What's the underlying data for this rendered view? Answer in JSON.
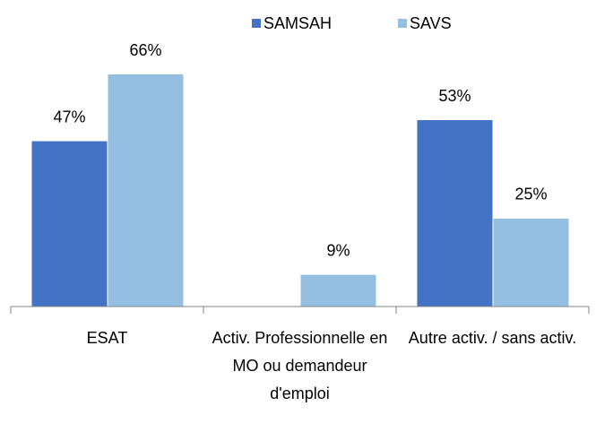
{
  "chart_data": {
    "type": "bar",
    "categories": [
      "ESAT",
      "Activ. Professionnelle en MO ou demandeur d'emploi",
      "Autre activ. / sans activ."
    ],
    "series": [
      {
        "name": "SAMSAH",
        "color": "#4472c4",
        "values": [
          47,
          null,
          53
        ],
        "value_labels": [
          "47%",
          null,
          "53%"
        ]
      },
      {
        "name": "SAVS",
        "color": "#95bfe0",
        "values": [
          66,
          9,
          25
        ],
        "value_labels": [
          "66%",
          "9%",
          "25%"
        ]
      }
    ],
    "legend": "top"
  }
}
